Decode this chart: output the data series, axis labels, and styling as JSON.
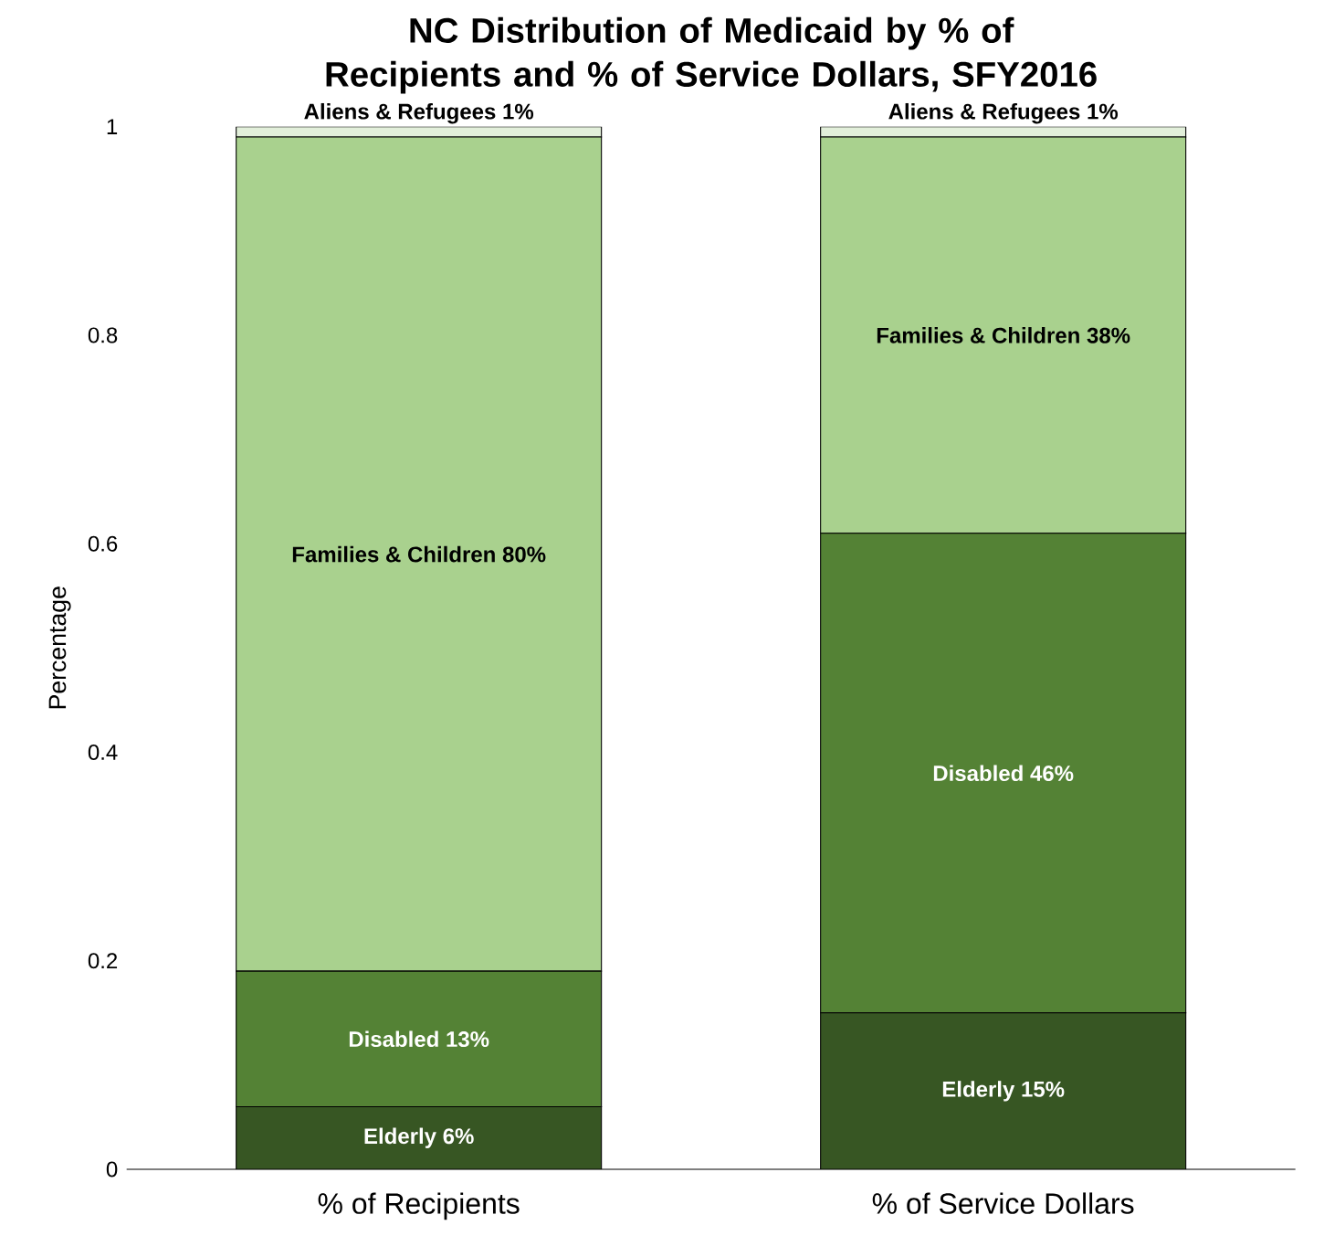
{
  "chart_data": {
    "type": "bar",
    "stacked": true,
    "title": "NC Distribution of Medicaid by % of Recipients and % of Service Dollars, SFY2016",
    "ylabel": "Percentage",
    "categories": [
      "% of Recipients",
      "% of Service Dollars"
    ],
    "series": [
      {
        "name": "Elderly",
        "color": "#375623",
        "values": [
          0.06,
          0.15
        ],
        "value_labels": [
          "6%",
          "15%"
        ]
      },
      {
        "name": "Disabled",
        "color": "#548235",
        "values": [
          0.13,
          0.46
        ],
        "value_labels": [
          "13%",
          "46%"
        ]
      },
      {
        "name": "Families & Children",
        "color": "#a9d18e",
        "values": [
          0.8,
          0.38
        ],
        "value_labels": [
          "80%",
          "38%"
        ]
      },
      {
        "name": "Aliens & Refugees",
        "color": "#e2efda",
        "values": [
          0.01,
          0.01
        ],
        "value_labels": [
          "1%",
          "1%"
        ]
      }
    ],
    "ylim": [
      0,
      1
    ],
    "yticks": [
      0,
      0.2,
      0.4,
      0.6,
      0.8,
      1
    ]
  }
}
